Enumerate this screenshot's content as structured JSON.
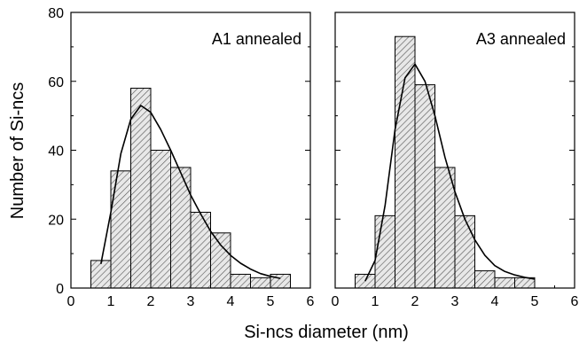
{
  "chart_data": [
    {
      "type": "bar",
      "label": "A1 annealed",
      "bin_width": 0.5,
      "bin_centers": [
        0.75,
        1.25,
        1.75,
        2.25,
        2.75,
        3.25,
        3.75,
        4.25,
        4.75,
        5.25
      ],
      "values": [
        8,
        34,
        58,
        40,
        35,
        22,
        16,
        4,
        3,
        4
      ],
      "fit_curve": {
        "x": [
          0.75,
          1.0,
          1.25,
          1.5,
          1.75,
          2.0,
          2.25,
          2.5,
          2.75,
          3.0,
          3.25,
          3.5,
          3.75,
          4.0,
          4.25,
          4.5,
          4.75,
          5.0,
          5.25
        ],
        "y": [
          7,
          22,
          39,
          49,
          53,
          51,
          46,
          40,
          33.5,
          27,
          21.5,
          16.5,
          12.5,
          9.5,
          7.2,
          5.5,
          4.2,
          3.4,
          2.8
        ]
      },
      "xlim": [
        0,
        6
      ],
      "ylim": [
        0,
        80
      ]
    },
    {
      "type": "bar",
      "label": "A3 annealed",
      "bin_width": 0.5,
      "bin_centers": [
        0.75,
        1.25,
        1.75,
        2.25,
        2.75,
        3.25,
        3.75,
        4.25,
        4.75
      ],
      "values": [
        4,
        21,
        73,
        59,
        35,
        21,
        5,
        3,
        3
      ],
      "fit_curve": {
        "x": [
          0.75,
          1.0,
          1.25,
          1.5,
          1.75,
          2.0,
          2.25,
          2.5,
          2.75,
          3.0,
          3.25,
          3.5,
          3.75,
          4.0,
          4.25,
          4.5,
          4.75,
          5.0
        ],
        "y": [
          2,
          8,
          24,
          46,
          61,
          65,
          60,
          50,
          38,
          28,
          20,
          14,
          9.5,
          6.5,
          4.8,
          3.8,
          3.1,
          2.6
        ]
      },
      "xlim": [
        0,
        6
      ],
      "ylim": [
        0,
        80
      ]
    }
  ],
  "axes": {
    "xlabel": "Si-ncs diameter (nm)",
    "ylabel": "Number of Si-ncs",
    "x_ticks": [
      "0",
      "1",
      "2",
      "3",
      "4",
      "5",
      "6"
    ],
    "y_ticks": [
      "0",
      "20",
      "40",
      "60",
      "80"
    ],
    "grid": false
  },
  "colors": {
    "bar_fill": "#e8e8e8",
    "hatch": "#555555",
    "stroke": "#000000",
    "curve": "#000000"
  }
}
